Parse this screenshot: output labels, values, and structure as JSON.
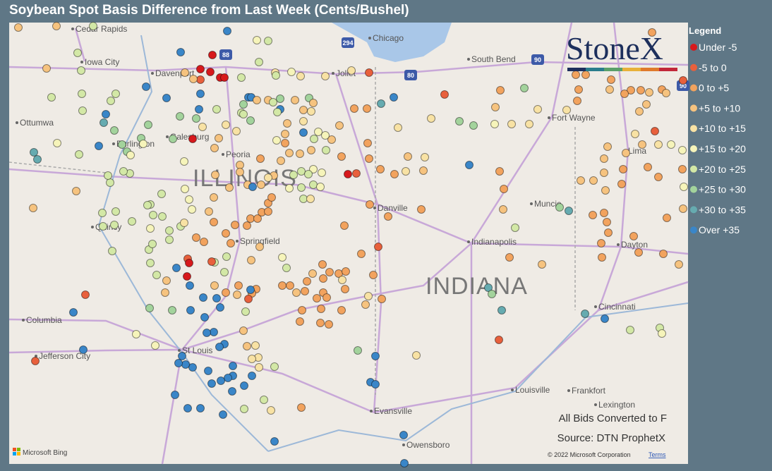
{
  "title": "Soybean Spot Basis Difference from Last Week (Cents/Bushel)",
  "map": {
    "cities": [
      "Cedar Rapids",
      "Iowa City",
      "Davenport",
      "Chicago",
      "South Bend",
      "Joliet",
      "Ottumwa",
      "Burlington",
      "Galesburg",
      "Peoria",
      "Fort Wayne",
      "Lima",
      "Quincy",
      "Springfield",
      "Danville",
      "Muncie",
      "Indianapolis",
      "Dayton",
      "Columbia",
      "Cincinnati",
      "Jefferson City",
      "St Louis",
      "Louisville",
      "Frankfort",
      "Lexington",
      "Evansville",
      "Owensboro"
    ],
    "states": [
      "ILLINOIS",
      "INDIANA"
    ],
    "highways": [
      "88",
      "294",
      "80",
      "90",
      "90"
    ]
  },
  "logo": "StoneX",
  "legend": {
    "title": "Legend",
    "items": [
      {
        "label": "Under -5",
        "color": "#d7191c"
      },
      {
        "label": "-5 to 0",
        "color": "#e8603c"
      },
      {
        "label": "0 to +5",
        "color": "#f2a35e"
      },
      {
        "label": "+5 to +10",
        "color": "#f6c37f"
      },
      {
        "label": "+10 to +15",
        "color": "#f8e2a4"
      },
      {
        "label": "+15 to +20",
        "color": "#f6f4ba"
      },
      {
        "label": "+20 to +25",
        "color": "#d3e8a6"
      },
      {
        "label": "+25 to +30",
        "color": "#a3d39c"
      },
      {
        "label": "+30 to +35",
        "color": "#66abb0"
      },
      {
        "label": "Over +35",
        "color": "#3a86c8"
      }
    ]
  },
  "notes": [
    "All Bids Converted to F",
    "Source: DTN ProphetX"
  ],
  "attribution": {
    "bing": "Microsoft Bing",
    "copyright": "© 2022 Microsoft Corporation",
    "terms": "Terms"
  }
}
